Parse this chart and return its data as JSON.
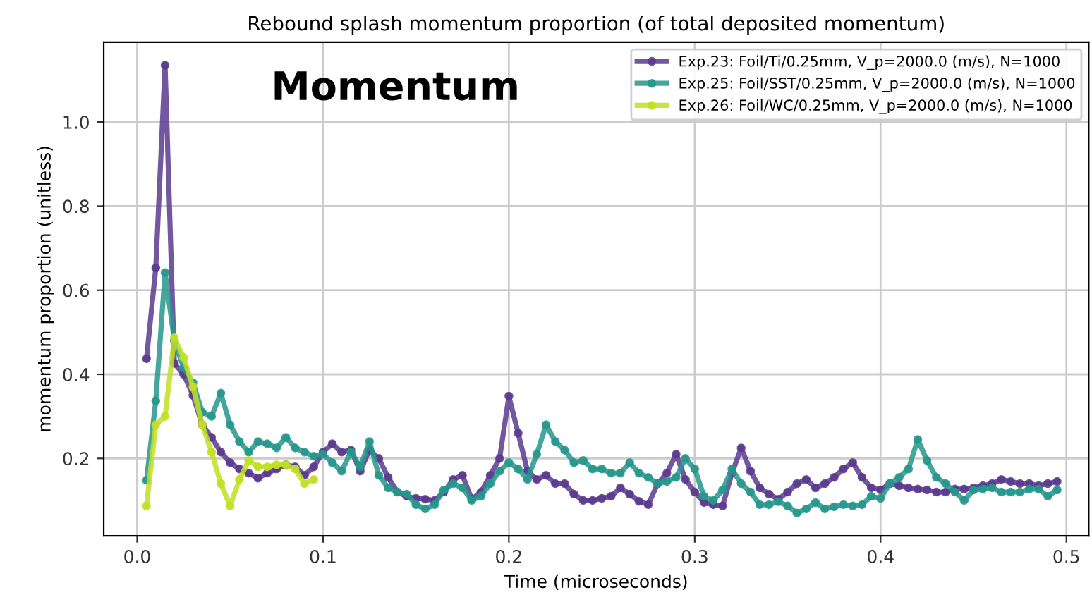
{
  "chart_data": {
    "type": "line",
    "title": "Rebound splash momentum proportion (of total deposited momentum)",
    "xlabel": "Time (microseconds)",
    "ylabel": "momentum proportion (unitless)",
    "annotations": [
      "Momentum"
    ],
    "xlim": [
      -0.018,
      0.512
    ],
    "ylim": [
      0.016,
      1.19
    ],
    "xticks": [
      {
        "value": 0,
        "label": "0.0"
      },
      0.1,
      0.2,
      0.3,
      0.4,
      0.5
    ],
    "yticks": [
      0.2,
      0.4,
      0.6,
      0.8,
      {
        "value": 1,
        "label": "1.0"
      }
    ],
    "grid": true,
    "legend": "top right",
    "marker": "circle",
    "line_style": "solid",
    "series": [
      {
        "name": "Exp.23: Foil/Ti/0.25mm, V_p=2000.0 (m/s), N=1000",
        "color": "#5b3a8e",
        "x": [
          0.005,
          0.01,
          0.015,
          0.02,
          0.025,
          0.03,
          0.035,
          0.04,
          0.045,
          0.05,
          0.055,
          0.06,
          0.065,
          0.07,
          0.075,
          0.08,
          0.085,
          0.09,
          0.095,
          0.1,
          0.105,
          0.11,
          0.115,
          0.12,
          0.125,
          0.13,
          0.135,
          0.14,
          0.145,
          0.15,
          0.155,
          0.16,
          0.165,
          0.17,
          0.175,
          0.18,
          0.185,
          0.19,
          0.195,
          0.2,
          0.205,
          0.21,
          0.215,
          0.22,
          0.225,
          0.23,
          0.235,
          0.24,
          0.245,
          0.25,
          0.255,
          0.26,
          0.265,
          0.27,
          0.275,
          0.28,
          0.285,
          0.29,
          0.295,
          0.3,
          0.305,
          0.31,
          0.315,
          0.32,
          0.325,
          0.33,
          0.335,
          0.34,
          0.345,
          0.35,
          0.355,
          0.36,
          0.365,
          0.37,
          0.375,
          0.38,
          0.385,
          0.39,
          0.395,
          0.4,
          0.405,
          0.41,
          0.415,
          0.42,
          0.425,
          0.43,
          0.435,
          0.44,
          0.445,
          0.45,
          0.455,
          0.46,
          0.465,
          0.47,
          0.475,
          0.48,
          0.485,
          0.49,
          0.495
        ],
        "values": [
          0.437,
          0.653,
          1.135,
          0.426,
          0.4,
          0.35,
          0.28,
          0.25,
          0.215,
          0.19,
          0.175,
          0.165,
          0.153,
          0.165,
          0.175,
          0.185,
          0.18,
          0.16,
          0.18,
          0.215,
          0.235,
          0.215,
          0.22,
          0.17,
          0.22,
          0.2,
          0.155,
          0.12,
          0.11,
          0.105,
          0.103,
          0.1,
          0.12,
          0.15,
          0.16,
          0.103,
          0.12,
          0.16,
          0.2,
          0.348,
          0.26,
          0.17,
          0.15,
          0.16,
          0.14,
          0.14,
          0.115,
          0.1,
          0.1,
          0.105,
          0.11,
          0.13,
          0.115,
          0.098,
          0.09,
          0.14,
          0.165,
          0.21,
          0.15,
          0.12,
          0.095,
          0.09,
          0.087,
          0.165,
          0.225,
          0.17,
          0.13,
          0.115,
          0.103,
          0.12,
          0.14,
          0.15,
          0.13,
          0.14,
          0.155,
          0.175,
          0.19,
          0.155,
          0.13,
          0.125,
          0.14,
          0.135,
          0.13,
          0.127,
          0.125,
          0.12,
          0.12,
          0.127,
          0.127,
          0.13,
          0.135,
          0.14,
          0.15,
          0.145,
          0.14,
          0.14,
          0.135,
          0.14,
          0.145
        ]
      },
      {
        "name": "Exp.25: Foil/SST/0.25mm, V_p=2000.0 (m/s), N=1000",
        "color": "#26968c",
        "x": [
          0.005,
          0.01,
          0.015,
          0.02,
          0.025,
          0.03,
          0.035,
          0.04,
          0.045,
          0.05,
          0.055,
          0.06,
          0.065,
          0.07,
          0.075,
          0.08,
          0.085,
          0.09,
          0.095,
          0.1,
          0.105,
          0.11,
          0.115,
          0.12,
          0.125,
          0.13,
          0.135,
          0.14,
          0.145,
          0.15,
          0.155,
          0.16,
          0.165,
          0.17,
          0.175,
          0.18,
          0.185,
          0.19,
          0.195,
          0.2,
          0.205,
          0.21,
          0.215,
          0.22,
          0.225,
          0.23,
          0.235,
          0.24,
          0.245,
          0.25,
          0.255,
          0.26,
          0.265,
          0.27,
          0.275,
          0.28,
          0.285,
          0.29,
          0.295,
          0.3,
          0.305,
          0.31,
          0.315,
          0.32,
          0.325,
          0.33,
          0.335,
          0.34,
          0.345,
          0.35,
          0.355,
          0.36,
          0.365,
          0.37,
          0.375,
          0.38,
          0.385,
          0.39,
          0.395,
          0.4,
          0.405,
          0.41,
          0.415,
          0.42,
          0.425,
          0.43,
          0.435,
          0.44,
          0.445,
          0.45,
          0.455,
          0.46,
          0.465,
          0.47,
          0.475,
          0.48,
          0.485,
          0.49,
          0.495
        ],
        "values": [
          0.148,
          0.337,
          0.642,
          0.48,
          0.415,
          0.38,
          0.31,
          0.3,
          0.355,
          0.28,
          0.24,
          0.215,
          0.24,
          0.235,
          0.225,
          0.25,
          0.225,
          0.215,
          0.205,
          0.21,
          0.19,
          0.17,
          0.215,
          0.18,
          0.24,
          0.16,
          0.13,
          0.12,
          0.115,
          0.09,
          0.08,
          0.09,
          0.125,
          0.14,
          0.13,
          0.1,
          0.11,
          0.14,
          0.17,
          0.19,
          0.175,
          0.15,
          0.21,
          0.28,
          0.24,
          0.22,
          0.19,
          0.195,
          0.175,
          0.175,
          0.165,
          0.165,
          0.19,
          0.165,
          0.155,
          0.14,
          0.145,
          0.155,
          0.2,
          0.175,
          0.11,
          0.1,
          0.125,
          0.175,
          0.14,
          0.12,
          0.09,
          0.09,
          0.097,
          0.087,
          0.07,
          0.08,
          0.095,
          0.08,
          0.085,
          0.09,
          0.087,
          0.09,
          0.11,
          0.105,
          0.14,
          0.155,
          0.175,
          0.245,
          0.195,
          0.155,
          0.14,
          0.12,
          0.1,
          0.125,
          0.127,
          0.13,
          0.12,
          0.12,
          0.12,
          0.127,
          0.127,
          0.11,
          0.125
        ]
      },
      {
        "name": "Exp.26: Foil/WC/0.25mm, V_p=2000.0 (m/s), N=1000",
        "color": "#c2df23",
        "x": [
          0.005,
          0.01,
          0.015,
          0.02,
          0.025,
          0.03,
          0.035,
          0.04,
          0.045,
          0.05,
          0.055,
          0.06,
          0.065,
          0.07,
          0.075,
          0.08,
          0.085,
          0.09,
          0.095
        ],
        "values": [
          0.087,
          0.28,
          0.3,
          0.487,
          0.44,
          0.37,
          0.28,
          0.215,
          0.14,
          0.087,
          0.15,
          0.195,
          0.18,
          0.18,
          0.185,
          0.185,
          0.175,
          0.14,
          0.15
        ]
      }
    ]
  }
}
